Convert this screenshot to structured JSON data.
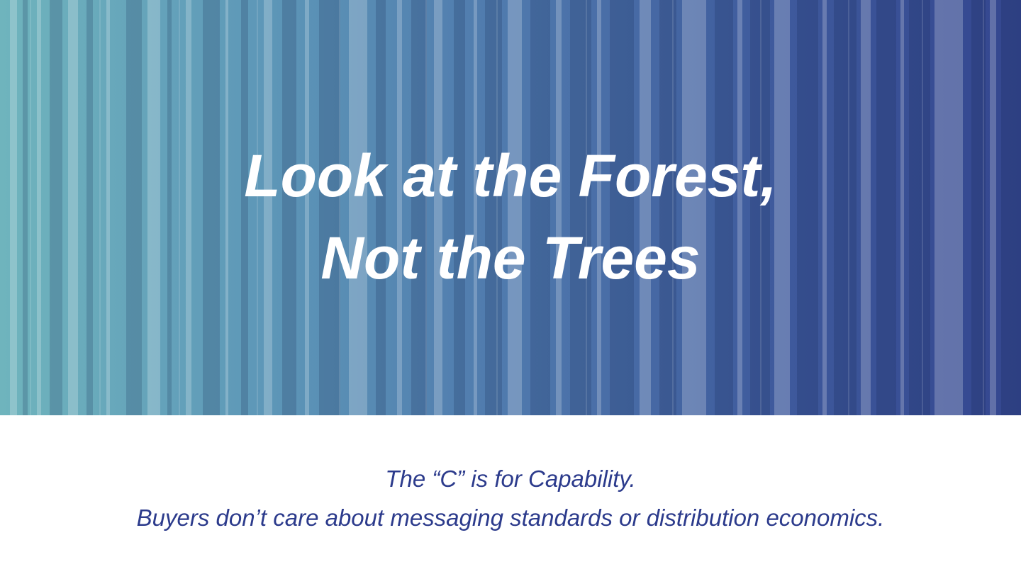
{
  "hero": {
    "title_line1": "Look at the Forest,",
    "title_line2": "Not the Trees",
    "gradient_colors": [
      "#6fb4bd",
      "#5e98b8",
      "#4f79ad",
      "#3f5b9d",
      "#34468f"
    ]
  },
  "caption": {
    "line1": "The “C” is for Capability.",
    "line2": "Buyers don’t care about messaging standards or distribution economics.",
    "color": "#2c3b8c"
  }
}
